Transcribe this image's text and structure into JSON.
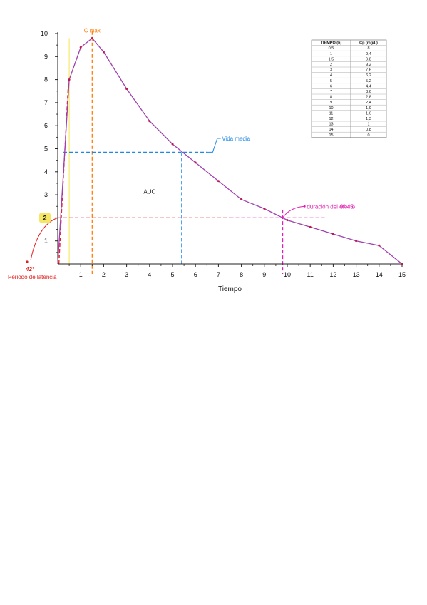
{
  "chart_data": {
    "type": "line",
    "xlabel": "Tiempo",
    "ylabel": "",
    "xlim": [
      0,
      15
    ],
    "ylim": [
      0,
      10
    ],
    "x_ticks": [
      "1",
      "2",
      "3",
      "4",
      "5",
      "6",
      "7",
      "8",
      "9",
      "10",
      "11",
      "12",
      "13",
      "14",
      "15"
    ],
    "y_ticks": [
      "1",
      "2",
      "3",
      "4",
      "5",
      "6",
      "7",
      "8",
      "9",
      "10"
    ],
    "series": [
      {
        "color": "#a040b0",
        "x": [
          0.5,
          1,
          1.5,
          2,
          3,
          4,
          5,
          6,
          7,
          8,
          9,
          10,
          11,
          12,
          13,
          14,
          15
        ],
        "y": [
          8,
          9.4,
          9.8,
          9.2,
          7.6,
          6.2,
          5.2,
          4.4,
          3.6,
          2.8,
          2.4,
          1.9,
          1.6,
          1.3,
          1,
          0.8,
          0
        ]
      }
    ],
    "table": {
      "headers": [
        "TIEMPO (h)",
        "Cp (mg/L)"
      ],
      "rows": [
        [
          "0,5",
          "8"
        ],
        [
          "1",
          "9,4"
        ],
        [
          "1,5",
          "9,8"
        ],
        [
          "2",
          "9,2"
        ],
        [
          "3",
          "7,6"
        ],
        [
          "4",
          "6,2"
        ],
        [
          "5",
          "5,2"
        ],
        [
          "6",
          "4,4"
        ],
        [
          "7",
          "3,6"
        ],
        [
          "8",
          "2,8"
        ],
        [
          "9",
          "2,4"
        ],
        [
          "10",
          "1,9"
        ],
        [
          "11",
          "1,6"
        ],
        [
          "12",
          "1,3"
        ],
        [
          "13",
          "1"
        ],
        [
          "14",
          "0,8"
        ],
        [
          "15",
          "0"
        ]
      ]
    },
    "annotations": {
      "cmax": {
        "label": "C max",
        "x": 1.5,
        "color": "#ff7f0e"
      },
      "half_life": {
        "label": "Vida media",
        "x": 5.4,
        "y": 4.85,
        "color": "#1e88e5"
      },
      "effect_duration": {
        "label": "duración del efecto",
        "label2": "9° 45'",
        "x": 9.8,
        "y": 2,
        "color": "#e020b0"
      },
      "latency": {
        "label": "Periodo de latencia",
        "value": "42°",
        "x": 0.05,
        "y": 2,
        "color": "#e02020"
      },
      "mec_badge": {
        "label": "2",
        "color": "#f5e663"
      },
      "auc": {
        "label": "AUC"
      }
    }
  }
}
